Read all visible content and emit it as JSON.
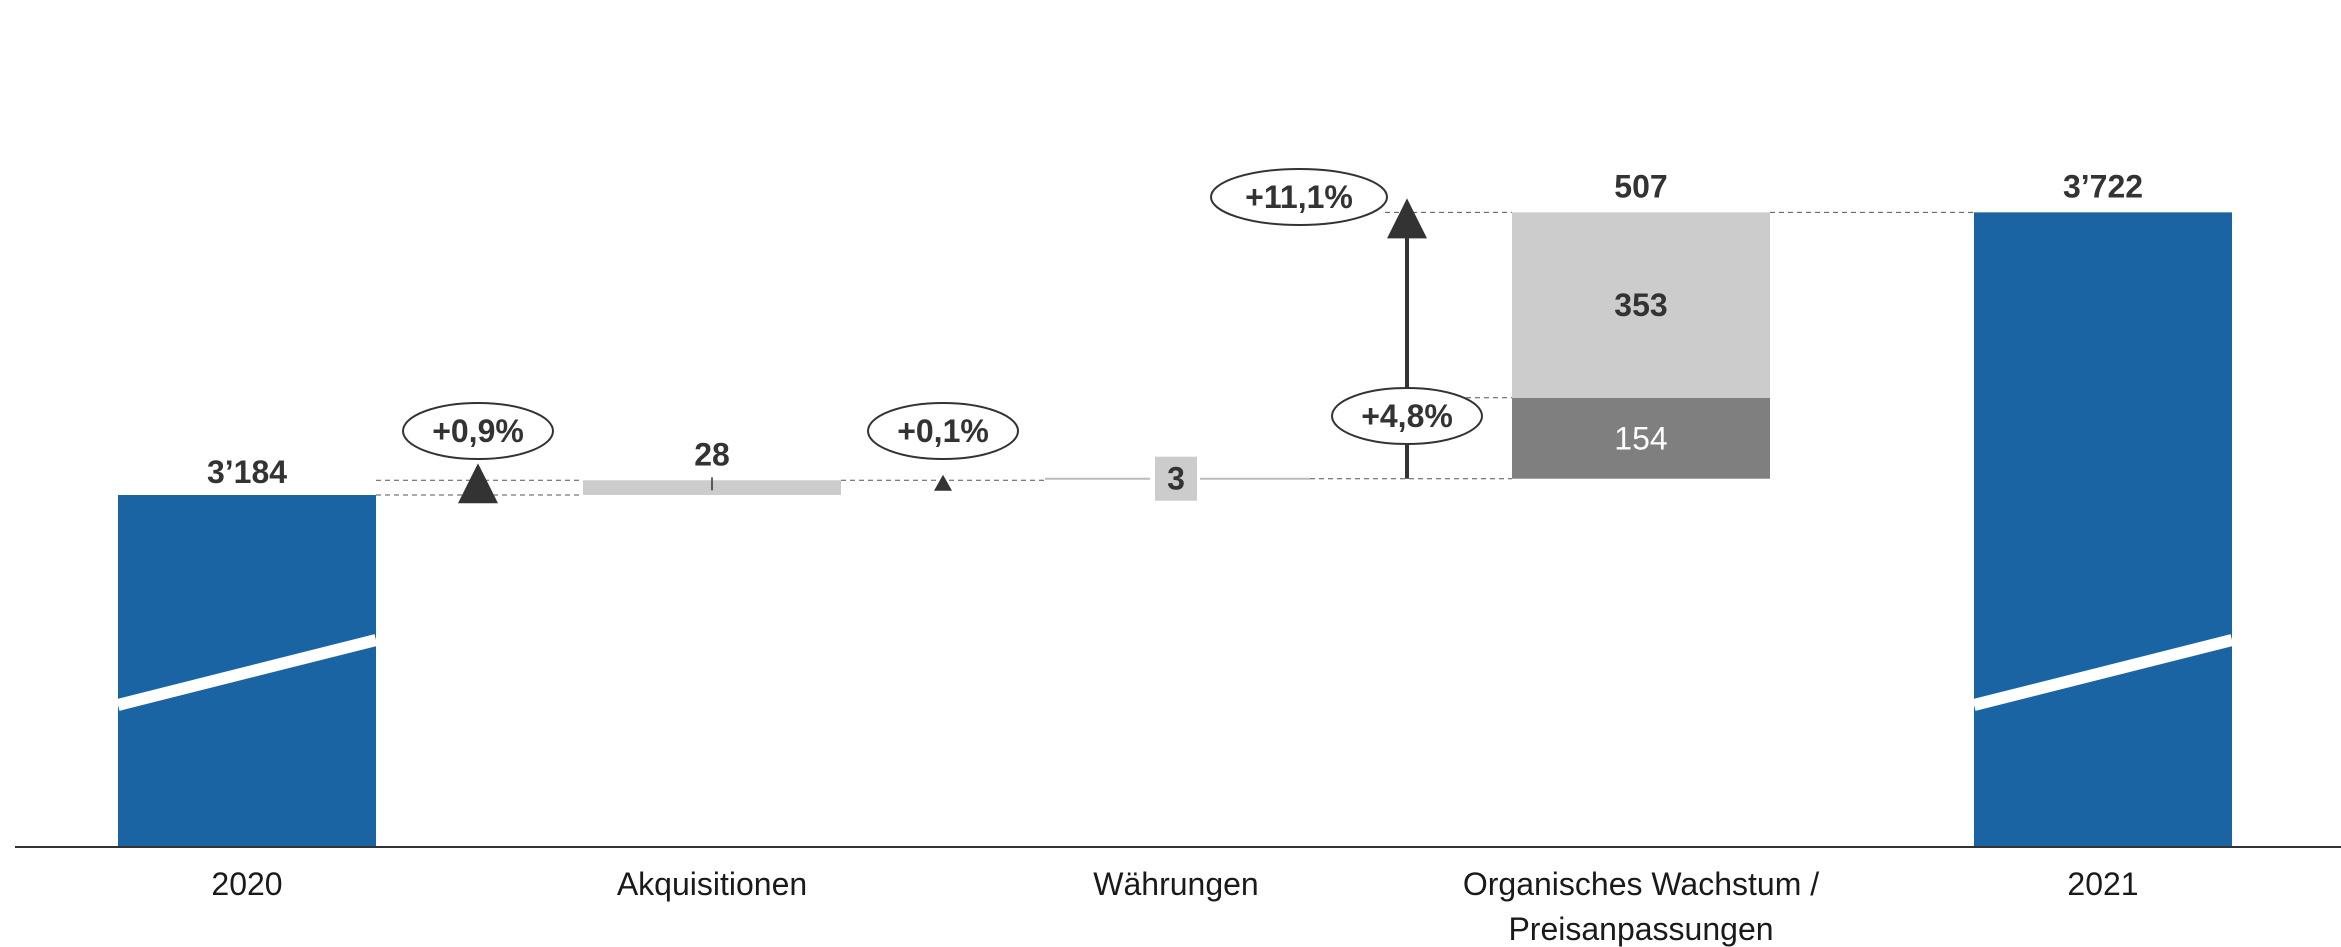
{
  "chart_data": {
    "type": "bar",
    "subtype": "waterfall-with-broken-axis",
    "categories": [
      "2020",
      "Akquisitionen",
      "Währungen",
      "Organisches Wachstum / Preisanpassungen",
      "2021"
    ],
    "category_lines": [
      [
        "2020"
      ],
      [
        "Akquisitionen"
      ],
      [
        "Währungen"
      ],
      [
        "Organisches Wachstum /",
        "Preisanpassungen"
      ],
      [
        "2021"
      ]
    ],
    "start": {
      "category": "2020",
      "value": 3184,
      "label": "3’184"
    },
    "steps": [
      {
        "category": "Akquisitionen",
        "value": 28,
        "label": "28",
        "pct_label": "+0,9%"
      },
      {
        "category": "Währungen",
        "value": 3,
        "label": "3",
        "pct_label": "+0,1%"
      },
      {
        "category": "Organisches Wachstum / Preisanpassungen",
        "value": 507,
        "label": "507",
        "segments": [
          {
            "value": 154,
            "label": "154",
            "pct_label": "+4,8%"
          },
          {
            "value": 353,
            "label": "353",
            "pct_label": "+11,1%"
          }
        ]
      }
    ],
    "end": {
      "category": "2021",
      "value": 3722,
      "label": "3’722"
    },
    "axis_break": true,
    "colors": {
      "total": "#1b64a4",
      "step": "#cccccc",
      "segment_lower": "#7f7f7f",
      "segment_upper": "#cccccc",
      "text": "#333333",
      "axis": "#333333"
    }
  }
}
